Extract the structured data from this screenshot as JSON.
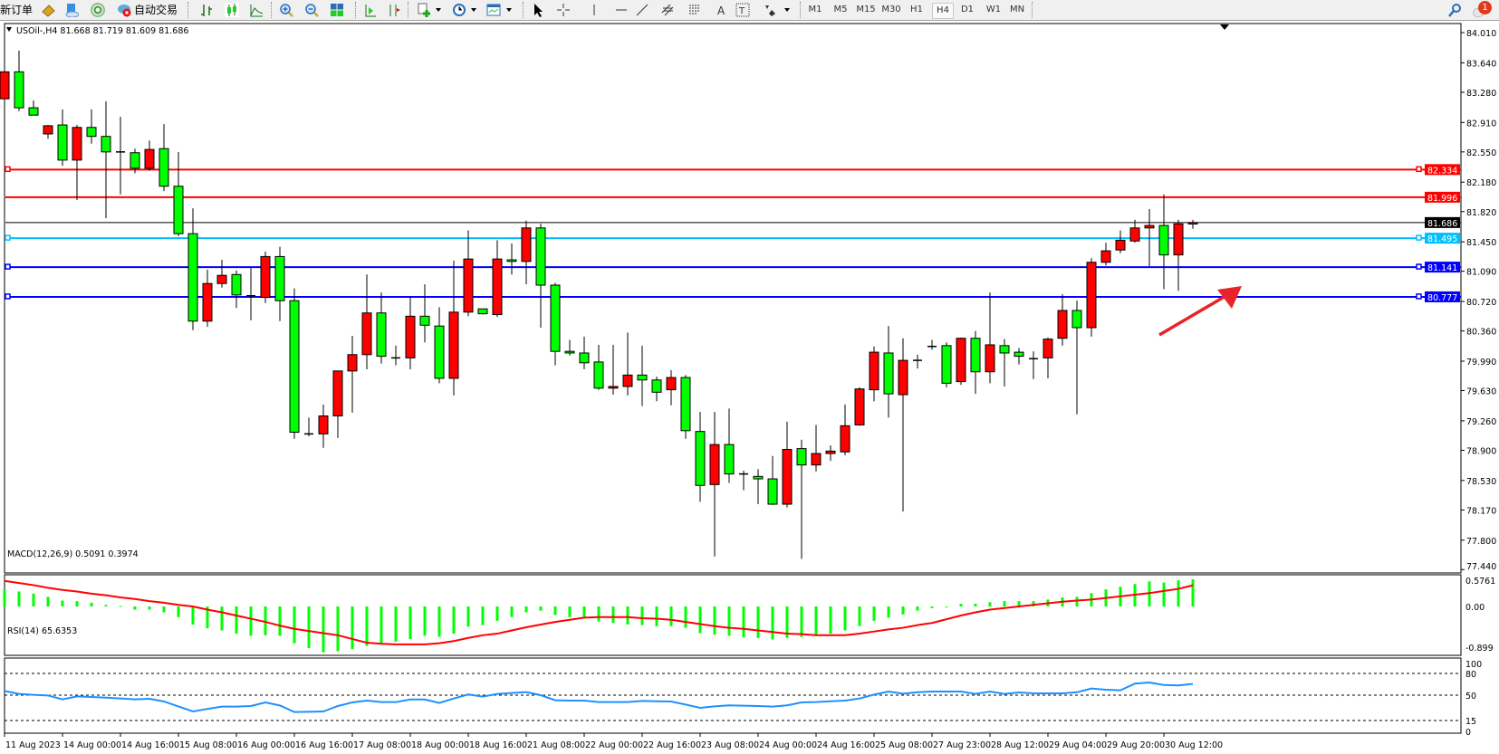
{
  "toolbar": {
    "new_order": "新订单",
    "auto_trading": "自动交易",
    "timeframes": [
      "M1",
      "M5",
      "M15",
      "M30",
      "H1",
      "H4",
      "D1",
      "W1",
      "MN"
    ],
    "selected_timeframe": "H4",
    "notification_count": "1",
    "icons": [
      "market-watch-icon",
      "data-window-icon",
      "signals-icon",
      "auto-trading-icon",
      "bar-chart-icon",
      "candlestick-icon",
      "line-chart-icon",
      "zoom-in-icon",
      "zoom-out-icon",
      "tile-windows-icon",
      "chart-shift-icon",
      "autoscroll-icon",
      "indicators-icon",
      "periods-icon",
      "templates-icon",
      "cursor-icon",
      "crosshair-icon",
      "vertical-line-icon",
      "horizontal-line-icon",
      "trendline-icon",
      "equidistant-channel-icon",
      "fibonacci-icon",
      "text-icon",
      "text-label-icon",
      "shapes-icon",
      "search-icon",
      "notification-icon"
    ]
  },
  "chart_data": [
    {
      "type": "candlestick",
      "title": "USOil-,H4  81.668 81.719 81.609 81.686",
      "ylim": [
        77.44,
        84.01
      ],
      "y_ticks": [
        "84.010",
        "83.640",
        "83.280",
        "82.910",
        "82.550",
        "82.180",
        "81.820",
        "81.450",
        "81.090",
        "80.720",
        "80.360",
        "79.990",
        "79.630",
        "79.260",
        "78.900",
        "78.530",
        "78.170",
        "77.800",
        "77.440"
      ],
      "x_ticks": [
        "11 Aug 2023",
        "14 Aug 00:00",
        "14 Aug 16:00",
        "15 Aug 08:00",
        "16 Aug 00:00",
        "16 Aug 16:00",
        "17 Aug 08:00",
        "18 Aug 00:00",
        "18 Aug 16:00",
        "21 Aug 08:00",
        "22 Aug 00:00",
        "22 Aug 16:00",
        "23 Aug 08:00",
        "24 Aug 00:00",
        "24 Aug 16:00",
        "25 Aug 08:00",
        "27 Aug 23:00",
        "28 Aug 12:00",
        "29 Aug 04:00",
        "29 Aug 20:00",
        "30 Aug 12:00"
      ],
      "up_color": "#ff0000",
      "down_color": "#00ff00",
      "ohlc": [
        [
          83.2,
          83.53,
          82.55,
          83.53
        ],
        [
          83.53,
          83.79,
          83.05,
          83.09
        ],
        [
          83.09,
          83.18,
          83.0,
          83.0
        ],
        [
          82.77,
          82.88,
          82.71,
          82.87
        ],
        [
          82.88,
          83.07,
          82.38,
          82.45
        ],
        [
          82.45,
          82.88,
          81.96,
          82.85
        ],
        [
          82.85,
          83.07,
          82.65,
          82.74
        ],
        [
          82.74,
          83.17,
          81.74,
          82.55
        ],
        [
          82.55,
          82.98,
          82.03,
          82.55
        ],
        [
          82.54,
          82.59,
          82.29,
          82.35
        ],
        [
          82.35,
          82.69,
          82.32,
          82.58
        ],
        [
          82.59,
          82.89,
          82.07,
          82.13
        ],
        [
          82.13,
          82.55,
          81.52,
          81.55
        ],
        [
          81.55,
          81.86,
          80.37,
          80.48
        ],
        [
          80.48,
          81.11,
          80.41,
          80.94
        ],
        [
          80.94,
          81.23,
          80.89,
          81.04
        ],
        [
          81.05,
          81.1,
          80.64,
          80.8
        ],
        [
          80.79,
          81.13,
          80.49,
          80.79
        ],
        [
          80.77,
          81.33,
          80.7,
          81.27
        ],
        [
          81.27,
          81.39,
          80.48,
          80.73
        ],
        [
          80.73,
          80.88,
          79.04,
          79.12
        ],
        [
          79.1,
          79.3,
          79.07,
          79.1
        ],
        [
          79.1,
          79.46,
          78.93,
          79.32
        ],
        [
          79.32,
          79.87,
          79.05,
          79.87
        ],
        [
          79.87,
          80.3,
          79.36,
          80.07
        ],
        [
          80.07,
          81.05,
          79.89,
          80.58
        ],
        [
          80.58,
          80.83,
          79.96,
          80.05
        ],
        [
          80.03,
          80.18,
          79.94,
          80.03
        ],
        [
          80.03,
          80.78,
          79.89,
          80.54
        ],
        [
          80.54,
          80.93,
          80.22,
          80.43
        ],
        [
          80.42,
          80.65,
          79.72,
          79.78
        ],
        [
          79.78,
          81.22,
          79.57,
          80.59
        ],
        [
          80.59,
          81.59,
          80.54,
          81.24
        ],
        [
          80.63,
          80.63,
          80.56,
          80.57
        ],
        [
          80.56,
          81.47,
          80.53,
          81.24
        ],
        [
          81.23,
          81.43,
          81.05,
          81.21
        ],
        [
          81.21,
          81.71,
          80.93,
          81.62
        ],
        [
          81.62,
          81.67,
          80.4,
          80.92
        ],
        [
          80.92,
          80.95,
          79.94,
          80.11
        ],
        [
          80.11,
          80.25,
          80.06,
          80.09
        ],
        [
          80.09,
          80.29,
          79.89,
          79.97
        ],
        [
          79.98,
          80.19,
          79.64,
          79.66
        ],
        [
          79.66,
          80.19,
          79.58,
          79.68
        ],
        [
          79.68,
          80.34,
          79.57,
          79.82
        ],
        [
          79.82,
          80.18,
          79.44,
          79.76
        ],
        [
          79.76,
          79.8,
          79.5,
          79.61
        ],
        [
          79.64,
          79.88,
          79.45,
          79.79
        ],
        [
          79.79,
          79.82,
          79.04,
          79.14
        ],
        [
          79.13,
          79.37,
          78.27,
          78.47
        ],
        [
          78.48,
          79.37,
          77.6,
          78.97
        ],
        [
          78.97,
          79.41,
          78.5,
          78.61
        ],
        [
          78.61,
          78.65,
          78.41,
          78.61
        ],
        [
          78.58,
          78.67,
          78.24,
          78.55
        ],
        [
          78.55,
          78.83,
          78.23,
          78.24
        ],
        [
          78.24,
          79.25,
          78.2,
          78.91
        ],
        [
          78.92,
          79.03,
          77.57,
          78.72
        ],
        [
          78.72,
          79.21,
          78.64,
          78.86
        ],
        [
          78.86,
          78.96,
          78.77,
          78.89
        ],
        [
          78.88,
          79.46,
          78.84,
          79.2
        ],
        [
          79.21,
          79.67,
          79.2,
          79.65
        ],
        [
          79.64,
          80.17,
          79.5,
          80.1
        ],
        [
          80.09,
          80.42,
          79.3,
          79.59
        ],
        [
          79.58,
          80.27,
          78.15,
          80.0
        ],
        [
          80.0,
          80.07,
          79.9,
          80.0
        ],
        [
          80.17,
          80.25,
          80.13,
          80.17
        ],
        [
          80.18,
          80.22,
          79.67,
          79.72
        ],
        [
          79.74,
          80.28,
          79.7,
          80.27
        ],
        [
          80.27,
          80.36,
          79.59,
          79.86
        ],
        [
          79.86,
          80.83,
          79.72,
          80.19
        ],
        [
          80.18,
          80.26,
          79.68,
          80.09
        ],
        [
          80.1,
          80.15,
          79.95,
          80.05
        ],
        [
          80.02,
          80.11,
          79.77,
          80.02
        ],
        [
          80.03,
          80.28,
          79.78,
          80.26
        ],
        [
          80.27,
          80.81,
          80.18,
          80.61
        ],
        [
          80.61,
          80.73,
          79.34,
          80.4
        ],
        [
          80.4,
          81.25,
          80.29,
          81.2
        ],
        [
          81.2,
          81.44,
          81.16,
          81.34
        ],
        [
          81.35,
          81.59,
          81.31,
          81.47
        ],
        [
          81.46,
          81.72,
          81.44,
          81.62
        ],
        [
          81.62,
          81.85,
          81.15,
          81.65
        ],
        [
          81.65,
          82.03,
          80.87,
          81.29
        ],
        [
          81.29,
          81.72,
          80.85,
          81.67
        ],
        [
          81.668,
          81.719,
          81.609,
          81.686
        ]
      ],
      "levels": [
        {
          "price": 82.334,
          "label": "82.334",
          "color": "#ff0000"
        },
        {
          "price": 81.996,
          "label": "81.996",
          "color": "#ff0000"
        },
        {
          "price": 81.686,
          "label": "81.686",
          "color": "#000000"
        },
        {
          "price": 81.495,
          "label": "81.495",
          "color": "#00bfff"
        },
        {
          "price": 81.141,
          "label": "81.141",
          "color": "#0000ff"
        },
        {
          "price": 80.777,
          "label": "80.777",
          "color": "#0000ff"
        }
      ],
      "annotation": "red-arrow-up-right"
    },
    {
      "type": "bar+line",
      "title": "MACD(12,26,9) 0.5091 0.3974",
      "y_ticks": [
        "0.5761",
        "0.00",
        "-0.899"
      ],
      "ylim": [
        -0.92,
        0.5761
      ],
      "histogram_color": "#00ff00",
      "signal_color": "#ff0000",
      "histogram": [
        0.31,
        0.28,
        0.24,
        0.18,
        0.11,
        0.1,
        0.07,
        0.03,
        0.01,
        -0.06,
        -0.06,
        -0.11,
        -0.2,
        -0.34,
        -0.41,
        -0.45,
        -0.51,
        -0.55,
        -0.54,
        -0.55,
        -0.69,
        -0.78,
        -0.86,
        -0.84,
        -0.8,
        -0.74,
        -0.7,
        -0.66,
        -0.61,
        -0.55,
        -0.57,
        -0.51,
        -0.38,
        -0.35,
        -0.27,
        -0.2,
        -0.11,
        -0.08,
        -0.16,
        -0.2,
        -0.2,
        -0.28,
        -0.31,
        -0.34,
        -0.35,
        -0.37,
        -0.37,
        -0.4,
        -0.5,
        -0.53,
        -0.55,
        -0.58,
        -0.59,
        -0.62,
        -0.59,
        -0.57,
        -0.55,
        -0.51,
        -0.45,
        -0.37,
        -0.27,
        -0.21,
        -0.15,
        -0.08,
        -0.03,
        -0.01,
        0.05,
        0.05,
        0.08,
        0.1,
        0.1,
        0.1,
        0.13,
        0.17,
        0.18,
        0.25,
        0.32,
        0.37,
        0.42,
        0.47,
        0.45,
        0.49,
        0.5091
      ],
      "signal": [
        0.48,
        0.44,
        0.4,
        0.35,
        0.31,
        0.28,
        0.24,
        0.21,
        0.17,
        0.14,
        0.1,
        0.07,
        0.03,
        0.0,
        -0.06,
        -0.11,
        -0.17,
        -0.23,
        -0.29,
        -0.36,
        -0.42,
        -0.46,
        -0.5,
        -0.54,
        -0.61,
        -0.68,
        -0.7,
        -0.71,
        -0.71,
        -0.71,
        -0.69,
        -0.65,
        -0.59,
        -0.54,
        -0.51,
        -0.45,
        -0.39,
        -0.34,
        -0.29,
        -0.25,
        -0.21,
        -0.2,
        -0.2,
        -0.2,
        -0.22,
        -0.23,
        -0.25,
        -0.29,
        -0.33,
        -0.37,
        -0.4,
        -0.42,
        -0.45,
        -0.48,
        -0.51,
        -0.52,
        -0.54,
        -0.54,
        -0.54,
        -0.51,
        -0.47,
        -0.43,
        -0.4,
        -0.35,
        -0.31,
        -0.24,
        -0.17,
        -0.11,
        -0.06,
        -0.03,
        0.0,
        0.03,
        0.06,
        0.09,
        0.11,
        0.13,
        0.16,
        0.19,
        0.22,
        0.25,
        0.29,
        0.33,
        0.3974
      ]
    },
    {
      "type": "line",
      "title": "RSI(14) 65.6353",
      "y_ticks": [
        "100",
        "80",
        "50",
        "15",
        "0"
      ],
      "levels": [
        80,
        50,
        15
      ],
      "ylim": [
        0,
        100
      ],
      "color": "#1e90ff",
      "values": [
        55.8,
        51.7,
        50.5,
        49.6,
        44.2,
        48.3,
        47.5,
        46.5,
        45.4,
        44.2,
        45,
        41.3,
        34.5,
        27.5,
        31,
        34.2,
        34.2,
        35,
        40,
        35.8,
        26.7,
        27,
        27.5,
        35,
        40,
        42.5,
        40.4,
        40.4,
        44,
        44,
        39.2,
        45.4,
        51,
        48,
        51.7,
        53,
        54.2,
        50,
        43,
        42.5,
        42.5,
        40.4,
        40.4,
        40.4,
        42,
        41.5,
        41.3,
        37,
        32.5,
        34.5,
        36,
        35.5,
        35,
        34.2,
        36,
        40,
        40.4,
        41.5,
        42.5,
        45.4,
        50.8,
        55,
        52,
        54,
        55,
        55,
        55,
        51.7,
        55,
        51.7,
        53.8,
        52.5,
        52.5,
        52.5,
        54,
        59.2,
        57.5,
        56.7,
        66,
        67.5,
        64,
        63.5,
        65.6353
      ]
    }
  ]
}
